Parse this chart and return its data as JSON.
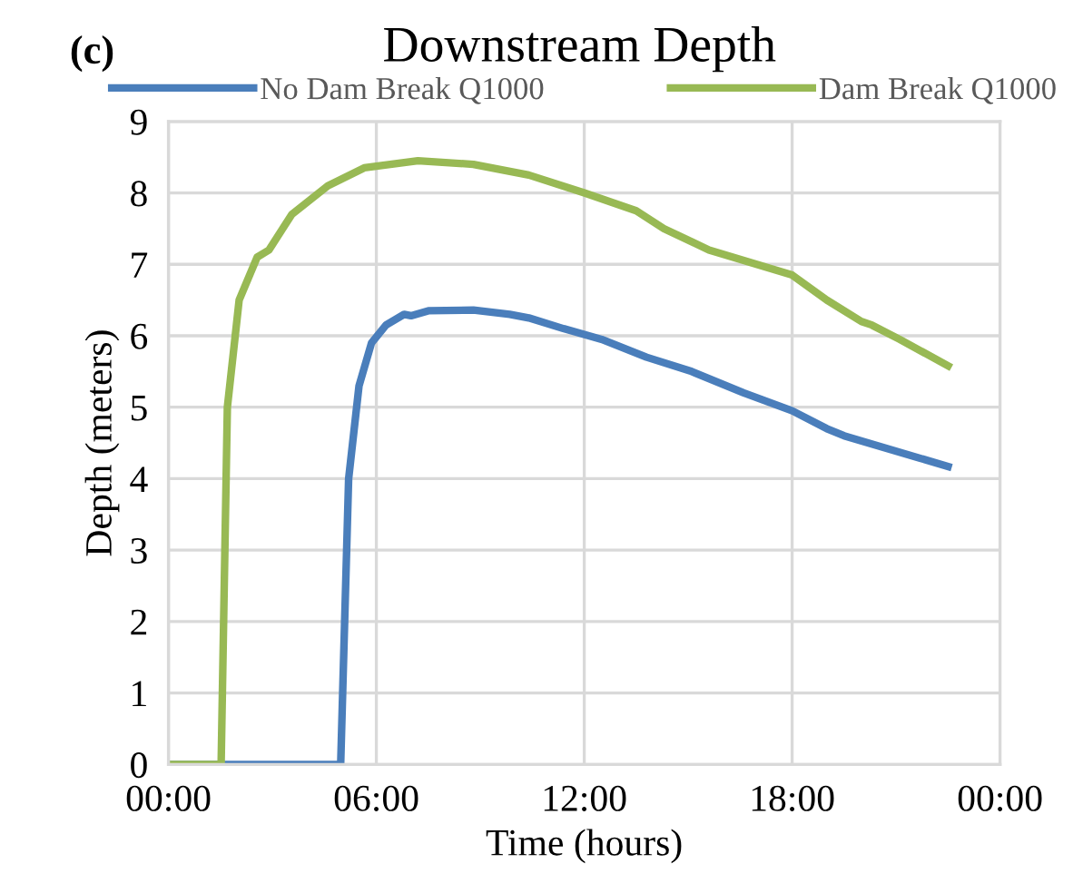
{
  "chart_data": {
    "type": "line",
    "title": "Downstream Depth",
    "xlabel": "Time (hours)",
    "ylabel": "Depth (meters)",
    "annotations": [
      "(c)"
    ],
    "xlim": [
      0,
      24
    ],
    "xticks": [
      {
        "value": 0,
        "label": "00:00"
      },
      {
        "value": 6,
        "label": "06:00"
      },
      {
        "value": 12,
        "label": "12:00"
      },
      {
        "value": 18,
        "label": "18:00"
      },
      {
        "value": 24,
        "label": "00:00"
      }
    ],
    "ylim": [
      0,
      9
    ],
    "yticks": [
      0,
      1,
      2,
      3,
      4,
      5,
      6,
      7,
      8,
      9
    ],
    "grid": true,
    "legend": "top",
    "marker": "none",
    "line_style": "solid",
    "series": [
      {
        "name": "No Dam Break Q1000",
        "color": "#4a7ebb",
        "x": [
          0,
          4.97,
          5.2,
          5.5,
          5.86,
          6.28,
          6.8,
          7.0,
          7.5,
          8.8,
          9.85,
          10.4,
          11.4,
          12.5,
          13.8,
          15.1,
          16.6,
          18,
          19,
          19.5,
          22.5
        ],
        "values": [
          0,
          0,
          4,
          5.3,
          5.9,
          6.15,
          6.3,
          6.28,
          6.35,
          6.36,
          6.3,
          6.25,
          6.1,
          5.95,
          5.7,
          5.5,
          5.2,
          4.95,
          4.7,
          4.6,
          4.17
        ]
      },
      {
        "name": "Dam Break Q1000",
        "color": "#98b954",
        "x": [
          0,
          1.52,
          1.7,
          2.04,
          2.56,
          2.9,
          3.56,
          4.6,
          5.65,
          7.2,
          8.8,
          10.4,
          12,
          13.5,
          14.3,
          15.6,
          18,
          19,
          20,
          20.3,
          21.1,
          22.5
        ],
        "values": [
          0,
          0,
          5,
          6.5,
          7.1,
          7.2,
          7.7,
          8.1,
          8.35,
          8.45,
          8.4,
          8.25,
          8.0,
          7.75,
          7.5,
          7.2,
          6.85,
          6.5,
          6.2,
          6.15,
          5.95,
          5.58
        ]
      }
    ]
  }
}
